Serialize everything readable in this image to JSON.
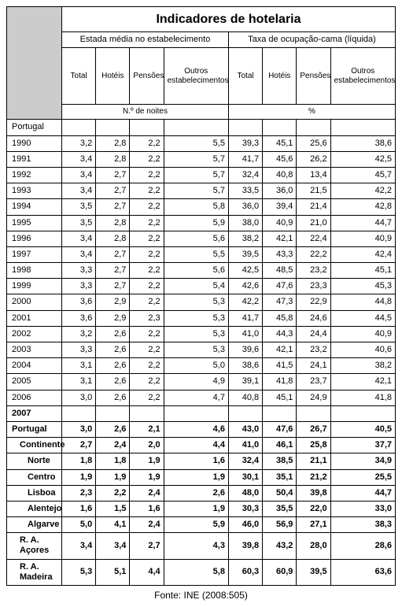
{
  "title": "Indicadores de hotelaria",
  "group1": "Estada média no estabelecimento",
  "group2": "Taxa de ocupação-cama (líquida)",
  "cols": {
    "total": "Total",
    "hoteis": "Hotéis",
    "pensoes": "Pensões",
    "outros": "Outros estabelecimentos"
  },
  "unit1": "N.º de noites",
  "unit2": "%",
  "portugal_label": "Portugal",
  "years": [
    {
      "y": "1990",
      "v": [
        "3,2",
        "2,8",
        "2,2",
        "5,5",
        "39,3",
        "45,1",
        "25,6",
        "38,6"
      ]
    },
    {
      "y": "1991",
      "v": [
        "3,4",
        "2,8",
        "2,2",
        "5,7",
        "41,7",
        "45,6",
        "26,2",
        "42,5"
      ]
    },
    {
      "y": "1992",
      "v": [
        "3,4",
        "2,7",
        "2,2",
        "5,7",
        "32,4",
        "40,8",
        "13,4",
        "45,7"
      ]
    },
    {
      "y": "1993",
      "v": [
        "3,4",
        "2,7",
        "2,2",
        "5,7",
        "33,5",
        "36,0",
        "21,5",
        "42,2"
      ]
    },
    {
      "y": "1994",
      "v": [
        "3,5",
        "2,7",
        "2,2",
        "5,8",
        "36,0",
        "39,4",
        "21,4",
        "42,8"
      ]
    },
    {
      "y": "1995",
      "v": [
        "3,5",
        "2,8",
        "2,2",
        "5,9",
        "38,0",
        "40,9",
        "21,0",
        "44,7"
      ]
    },
    {
      "y": "1996",
      "v": [
        "3,4",
        "2,8",
        "2,2",
        "5,6",
        "38,2",
        "42,1",
        "22,4",
        "40,9"
      ]
    },
    {
      "y": "1997",
      "v": [
        "3,4",
        "2,7",
        "2,2",
        "5,5",
        "39,5",
        "43,3",
        "22,2",
        "42,4"
      ]
    },
    {
      "y": "1998",
      "v": [
        "3,3",
        "2,7",
        "2,2",
        "5,6",
        "42,5",
        "48,5",
        "23,2",
        "45,1"
      ]
    },
    {
      "y": "1999",
      "v": [
        "3,3",
        "2,7",
        "2,2",
        "5,4",
        "42,6",
        "47,6",
        "23,3",
        "45,3"
      ]
    },
    {
      "y": "2000",
      "v": [
        "3,6",
        "2,9",
        "2,2",
        "5,3",
        "42,2",
        "47,3",
        "22,9",
        "44,8"
      ]
    },
    {
      "y": "2001",
      "v": [
        "3,6",
        "2,9",
        "2,3",
        "5,3",
        "41,7",
        "45,8",
        "24,6",
        "44,5"
      ]
    },
    {
      "y": "2002",
      "v": [
        "3,2",
        "2,6",
        "2,2",
        "5,3",
        "41,0",
        "44,3",
        "24,4",
        "40,9"
      ]
    },
    {
      "y": "2003",
      "v": [
        "3,3",
        "2,6",
        "2,2",
        "5,3",
        "39,6",
        "42,1",
        "23,2",
        "40,6"
      ]
    },
    {
      "y": "2004",
      "v": [
        "3,1",
        "2,6",
        "2,2",
        "5,0",
        "38,6",
        "41,5",
        "24,1",
        "38,2"
      ]
    },
    {
      "y": "2005",
      "v": [
        "3,1",
        "2,6",
        "2,2",
        "4,9",
        "39,1",
        "41,8",
        "23,7",
        "42,1"
      ]
    },
    {
      "y": "2006",
      "v": [
        "3,0",
        "2,6",
        "2,2",
        "4,7",
        "40,8",
        "45,1",
        "24,9",
        "41,8"
      ]
    }
  ],
  "year2007": "2007",
  "regions": [
    {
      "label": "Portugal",
      "indent": 0,
      "v": [
        "3,0",
        "2,6",
        "2,1",
        "4,6",
        "43,0",
        "47,6",
        "26,7",
        "40,5"
      ]
    },
    {
      "label": "Continente",
      "indent": 1,
      "v": [
        "2,7",
        "2,4",
        "2,0",
        "4,4",
        "41,0",
        "46,1",
        "25,8",
        "37,7"
      ]
    },
    {
      "label": "Norte",
      "indent": 2,
      "v": [
        "1,8",
        "1,8",
        "1,9",
        "1,6",
        "32,4",
        "38,5",
        "21,1",
        "34,9"
      ]
    },
    {
      "label": "Centro",
      "indent": 2,
      "v": [
        "1,9",
        "1,9",
        "1,9",
        "1,9",
        "30,1",
        "35,1",
        "21,2",
        "25,5"
      ]
    },
    {
      "label": "Lisboa",
      "indent": 2,
      "v": [
        "2,3",
        "2,2",
        "2,4",
        "2,6",
        "48,0",
        "50,4",
        "39,8",
        "44,7"
      ]
    },
    {
      "label": "Alentejo",
      "indent": 2,
      "v": [
        "1,6",
        "1,5",
        "1,6",
        "1,9",
        "30,3",
        "35,5",
        "22,0",
        "33,0"
      ]
    },
    {
      "label": "Algarve",
      "indent": 2,
      "v": [
        "5,0",
        "4,1",
        "2,4",
        "5,9",
        "46,0",
        "56,9",
        "27,1",
        "38,3"
      ]
    },
    {
      "label": "R. A. Açores",
      "indent": 1,
      "v": [
        "3,4",
        "3,4",
        "2,7",
        "4,3",
        "39,8",
        "43,2",
        "28,0",
        "28,6"
      ]
    },
    {
      "label": "R. A. Madeira",
      "indent": 1,
      "v": [
        "5,3",
        "5,1",
        "4,4",
        "5,8",
        "60,3",
        "60,9",
        "39,5",
        "63,6"
      ]
    }
  ],
  "source": "Fonte: INE (2008:505)"
}
